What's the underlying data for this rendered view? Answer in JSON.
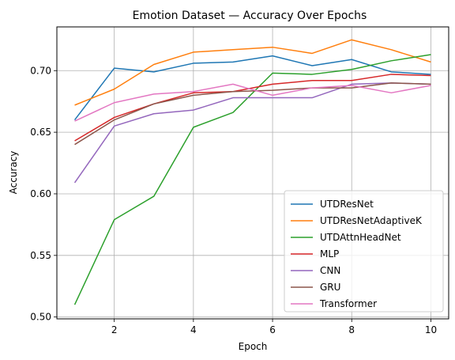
{
  "chart_data": {
    "type": "line",
    "title": "Emotion Dataset — Accuracy Over Epochs",
    "xlabel": "Epoch",
    "ylabel": "Accuracy",
    "xlim": [
      0.55,
      10.45
    ],
    "ylim": [
      0.4985,
      0.7355
    ],
    "xticks": [
      2,
      4,
      6,
      8,
      10
    ],
    "yticks": [
      0.5,
      0.55,
      0.6,
      0.65,
      0.7
    ],
    "ytick_labels": [
      "0.50",
      "0.55",
      "0.60",
      "0.65",
      "0.70"
    ],
    "grid": true,
    "legend_position": "lower-right",
    "x": [
      1,
      2,
      3,
      4,
      5,
      6,
      7,
      8,
      9,
      10
    ],
    "series": [
      {
        "name": "UTDResNet",
        "color": "#1f77b4",
        "values": [
          0.66,
          0.702,
          0.699,
          0.706,
          0.707,
          0.712,
          0.704,
          0.709,
          0.699,
          0.697
        ]
      },
      {
        "name": "UTDResNetAdaptiveK",
        "color": "#ff7f0e",
        "values": [
          0.672,
          0.685,
          0.705,
          0.715,
          0.717,
          0.719,
          0.714,
          0.725,
          0.717,
          0.707
        ]
      },
      {
        "name": "UTDAttnHeadNet",
        "color": "#2ca02c",
        "values": [
          0.51,
          0.579,
          0.598,
          0.654,
          0.666,
          0.698,
          0.697,
          0.701,
          0.708,
          0.713
        ]
      },
      {
        "name": "MLP",
        "color": "#d62728",
        "values": [
          0.643,
          0.662,
          0.673,
          0.682,
          0.683,
          0.689,
          0.692,
          0.692,
          0.697,
          0.696
        ]
      },
      {
        "name": "CNN",
        "color": "#9467bd",
        "values": [
          0.609,
          0.655,
          0.665,
          0.668,
          0.678,
          0.678,
          0.678,
          0.689,
          0.69,
          0.689
        ]
      },
      {
        "name": "GRU",
        "color": "#8c564b",
        "values": [
          0.64,
          0.66,
          0.673,
          0.68,
          0.683,
          0.684,
          0.686,
          0.686,
          0.69,
          0.689
        ]
      },
      {
        "name": "Transformer",
        "color": "#e377c2",
        "values": [
          0.659,
          0.674,
          0.681,
          0.683,
          0.689,
          0.68,
          0.686,
          0.688,
          0.682,
          0.688
        ]
      }
    ]
  }
}
